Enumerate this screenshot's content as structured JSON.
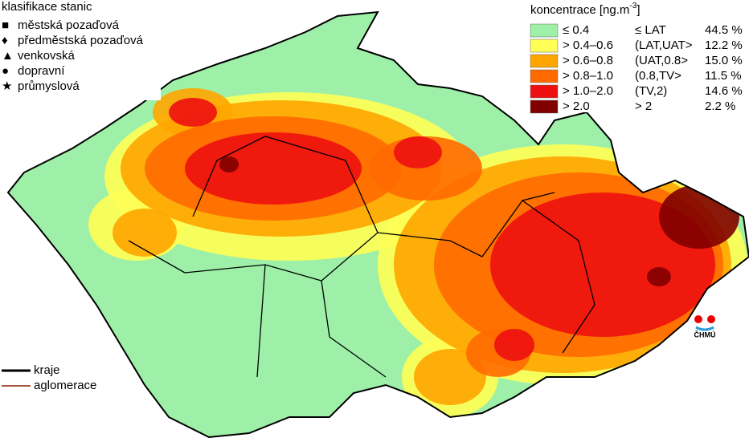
{
  "legend_stations": {
    "title": "klasifikace stanic",
    "items": [
      {
        "symbol": "■",
        "label": "městská pozaďová"
      },
      {
        "symbol": "♦",
        "label": "předměstská pozaďová"
      },
      {
        "symbol": "▲",
        "label": "venkovská"
      },
      {
        "symbol": "●",
        "label": "dopravní"
      },
      {
        "symbol": "★",
        "label": "průmyslová"
      }
    ]
  },
  "legend_boundaries": [
    {
      "label": "kraje",
      "color": "#000000"
    },
    {
      "label": "aglomerace",
      "color": "#8b1a00"
    }
  ],
  "legend_concentration": {
    "title": "koncentrace [ng.m",
    "exponent": "-3",
    "title_end": "]",
    "rows": [
      {
        "color": "#9ef0a8",
        "range": "≤ 0.4",
        "limit": "≤ LAT",
        "share": "44.5 %"
      },
      {
        "color": "#ffff55",
        "range": "> 0.4–0.6",
        "limit": "(LAT,UAT>",
        "share": "12.2 %"
      },
      {
        "color": "#ffa500",
        "range": "> 0.6–0.8",
        "limit": "(UAT,0.8>",
        "share": "15.0 %"
      },
      {
        "color": "#ff6a00",
        "range": "> 0.8–1.0",
        "limit": "(0.8,TV>",
        "share": "11.5 %"
      },
      {
        "color": "#ee1010",
        "range": "> 1.0–2.0",
        "limit": "(TV,2)",
        "share": "14.6 %"
      },
      {
        "color": "#800000",
        "range": "> 2.0",
        "limit": "> 2",
        "share": "2.2 %"
      }
    ]
  },
  "logo": "ČHMÚ"
}
